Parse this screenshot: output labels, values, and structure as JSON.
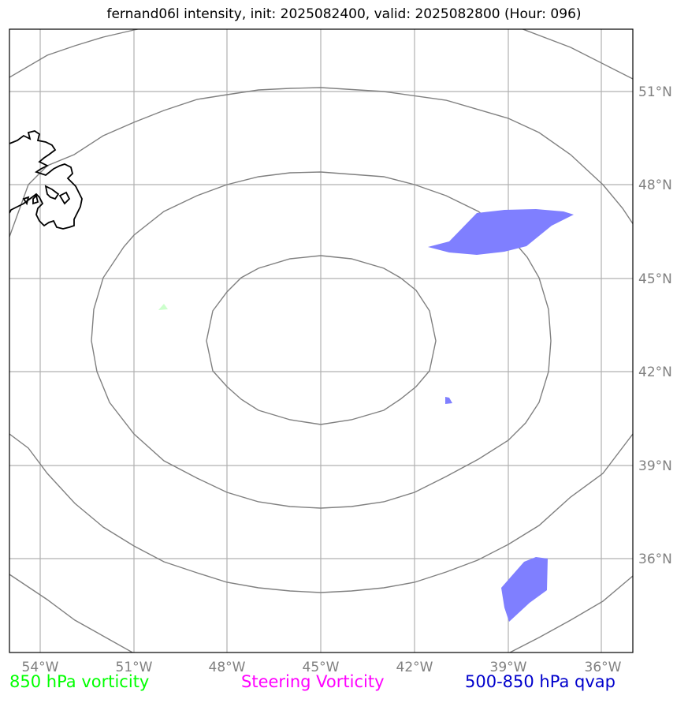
{
  "title": "fernand06l intensity, init: 2025082400, valid: 2025082800 (Hour: 096)",
  "map": {
    "lon_ticks": [
      "54°W",
      "51°W",
      "48°W",
      "45°W",
      "42°W",
      "39°W",
      "36°W"
    ],
    "lat_ticks": [
      "51°N",
      "48°N",
      "45°N",
      "42°N",
      "39°N",
      "36°N"
    ],
    "colors": {
      "gridline": "#b0b0b0",
      "contour": "#808080",
      "coastline": "#000000",
      "qvap_fill": "#7f7fff",
      "vorticity_fill": "#ccffcc",
      "tick_label": "#808080"
    }
  },
  "legend": [
    {
      "label": "850 hPa vorticity",
      "color": "#00ff00"
    },
    {
      "label": "Steering Vorticity",
      "color": "#ff00ff"
    },
    {
      "label": "500-850 hPa qvap",
      "color": "#0000cc"
    }
  ]
}
